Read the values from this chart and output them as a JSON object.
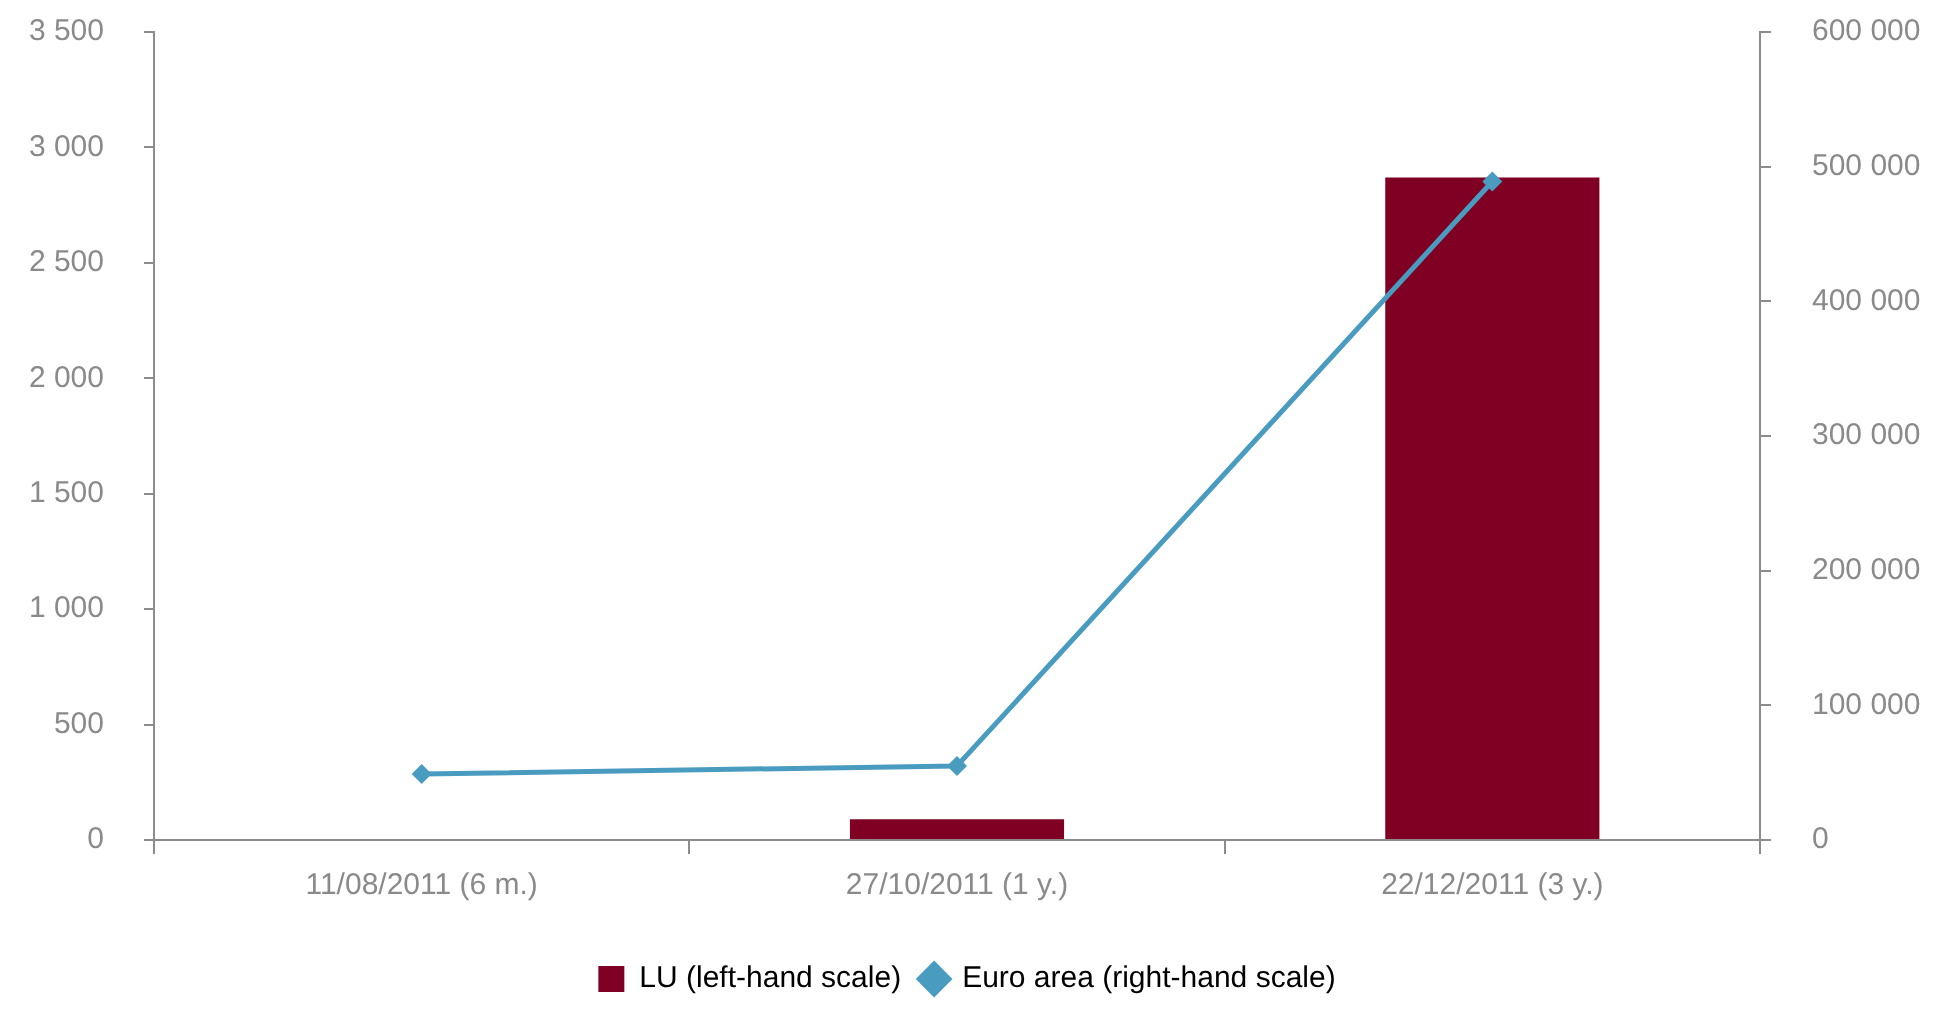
{
  "chart_data": {
    "type": "bar",
    "categories": [
      "11/08/2011 (6 m.)",
      "27/10/2011 (1 y.)",
      "22/12/2011 (3 y.)"
    ],
    "series": [
      {
        "name": "LU (left-hand scale)",
        "color": "#7f0022",
        "values": [
          null,
          90,
          2870
        ]
      },
      {
        "name": "Euro area (right-hand scale)",
        "type": "line",
        "axis": "y2",
        "color": "#4a9bc0",
        "values": [
          49000,
          55000,
          489000
        ]
      }
    ],
    "ylim": [
      0,
      3500
    ],
    "yticks": [
      0,
      500,
      {
        "value": 1000,
        "label": "1 000"
      },
      {
        "value": 1500,
        "label": "1 500"
      },
      {
        "value": 2000,
        "label": "2 000"
      },
      {
        "value": 2500,
        "label": "2 500"
      },
      {
        "value": 3000,
        "label": "3 000"
      },
      {
        "value": 3500,
        "label": "3 500"
      }
    ],
    "y2lim": [
      0,
      600000
    ],
    "y2ticks": [
      0,
      {
        "value": 100000,
        "label": "100 000"
      },
      {
        "value": 200000,
        "label": "200 000"
      },
      {
        "value": 300000,
        "label": "300 000"
      },
      {
        "value": 400000,
        "label": "400 000"
      },
      {
        "value": 500000,
        "label": "500 000"
      },
      {
        "value": 600000,
        "label": "600 000"
      }
    ],
    "legend": "bottom",
    "marker": "diamond"
  }
}
